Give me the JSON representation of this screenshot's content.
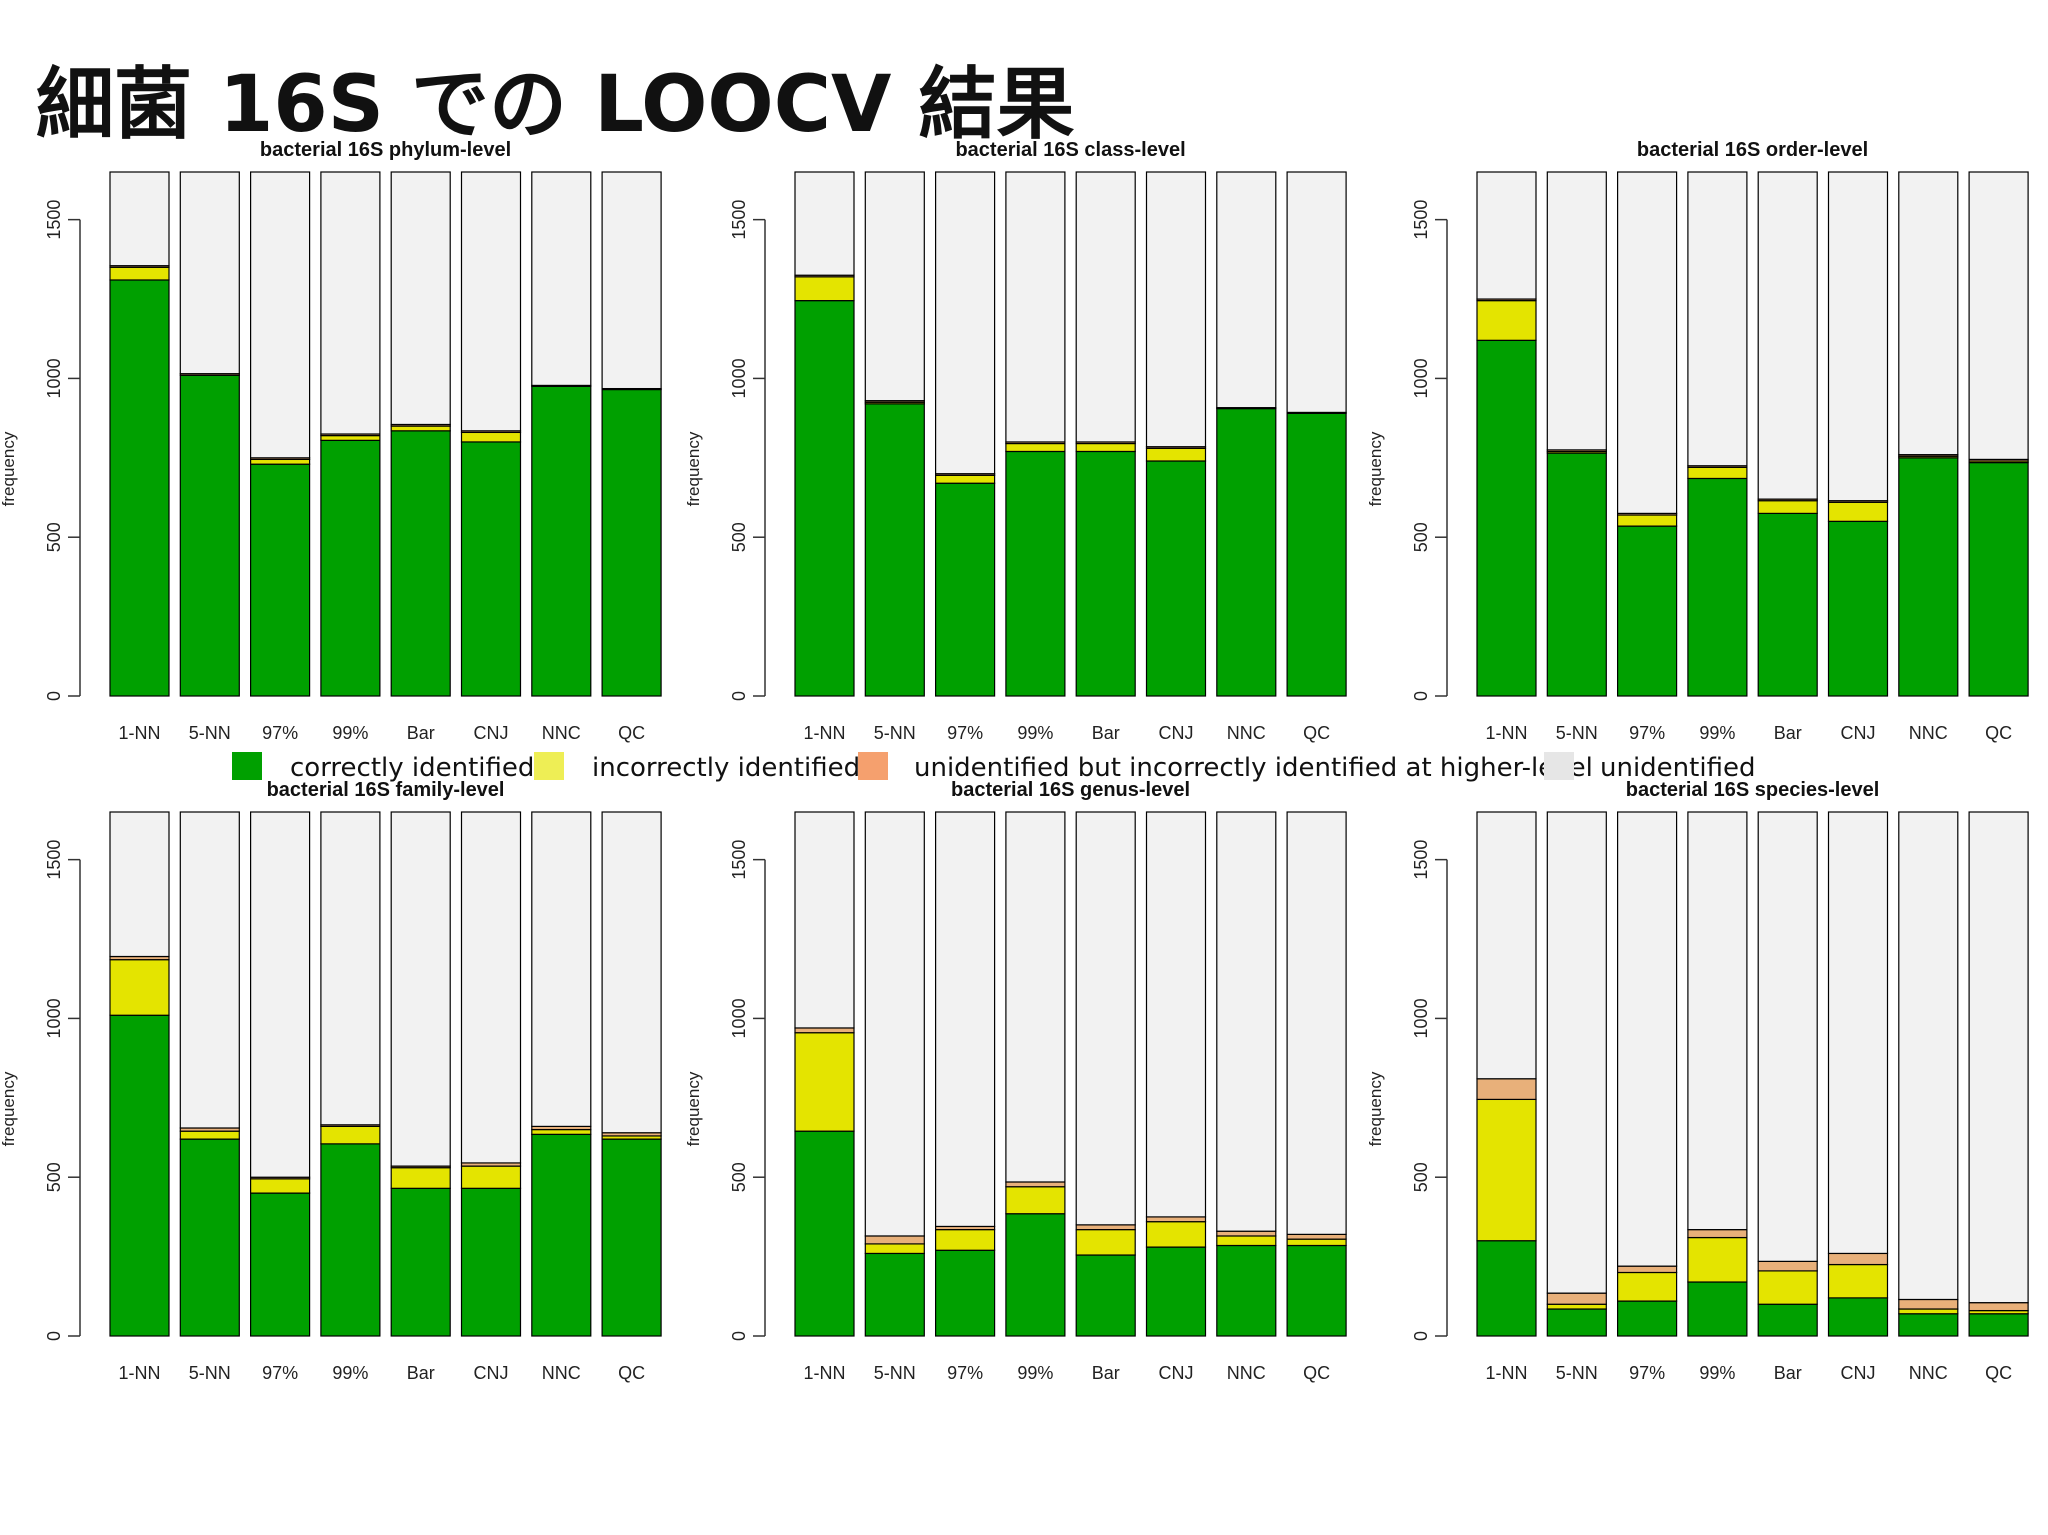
{
  "slide": {
    "title": "細菌 16S での LOOCV 結果"
  },
  "chart_data": {
    "type": "bar",
    "stacked": true,
    "categories": [
      "1-NN",
      "5-NN",
      "97%",
      "99%",
      "Bar",
      "CNJ",
      "NNC",
      "QC"
    ],
    "ylabel": "frequency",
    "ylim": [
      0,
      1650
    ],
    "yticks": [
      0,
      500,
      1000,
      1500
    ],
    "total": 1650,
    "grid": false,
    "legend": {
      "position": "between-rows",
      "entries": [
        {
          "key": "correct",
          "label": "correctly identified",
          "color": "#00a000"
        },
        {
          "key": "incorrect",
          "label": "incorrectly identified",
          "color": "#e4e400"
        },
        {
          "key": "higher",
          "label": "unidentified but incorrectly identified at higher-level",
          "color": "#e8b07a"
        },
        {
          "key": "unid",
          "label": "unidentified",
          "color": "#f2f2f2"
        }
      ]
    },
    "legend_swatch_colors": {
      "correct": "#00a000",
      "incorrect": "#eeee55",
      "higher": "#f5a06e",
      "unid": "#e6e6e6"
    },
    "panels": [
      {
        "title": "bacterial 16S phylum-level",
        "series": [
          {
            "name": "correctly identified",
            "values": [
              1310,
              1010,
              730,
              805,
              835,
              800,
              975,
              965
            ]
          },
          {
            "name": "incorrectly identified",
            "values": [
              40,
              0,
              15,
              15,
              15,
              30,
              0,
              0
            ]
          },
          {
            "name": "unidentified but incorrectly identified at higher-level",
            "values": [
              5,
              5,
              5,
              5,
              5,
              5,
              3,
              3
            ]
          }
        ]
      },
      {
        "title": "bacterial 16S class-level",
        "series": [
          {
            "name": "correctly identified",
            "values": [
              1245,
              920,
              670,
              770,
              770,
              740,
              905,
              890
            ]
          },
          {
            "name": "incorrectly identified",
            "values": [
              75,
              5,
              25,
              25,
              25,
              40,
              0,
              0
            ]
          },
          {
            "name": "unidentified but incorrectly identified at higher-level",
            "values": [
              5,
              5,
              5,
              5,
              5,
              5,
              3,
              3
            ]
          }
        ]
      },
      {
        "title": "bacterial 16S order-level",
        "series": [
          {
            "name": "correctly identified",
            "values": [
              1120,
              765,
              535,
              685,
              575,
              550,
              750,
              735
            ]
          },
          {
            "name": "incorrectly identified",
            "values": [
              125,
              5,
              35,
              35,
              40,
              60,
              5,
              5
            ]
          },
          {
            "name": "unidentified but incorrectly identified at higher-level",
            "values": [
              5,
              5,
              5,
              5,
              5,
              5,
              5,
              5
            ]
          }
        ]
      },
      {
        "title": "bacterial 16S family-level",
        "series": [
          {
            "name": "correctly identified",
            "values": [
              1010,
              620,
              450,
              605,
              465,
              465,
              635,
              620
            ]
          },
          {
            "name": "incorrectly identified",
            "values": [
              175,
              25,
              45,
              55,
              65,
              70,
              15,
              10
            ]
          },
          {
            "name": "unidentified but incorrectly identified at higher-level",
            "values": [
              10,
              10,
              5,
              5,
              5,
              10,
              10,
              10
            ]
          }
        ]
      },
      {
        "title": "bacterial 16S genus-level",
        "series": [
          {
            "name": "correctly identified",
            "values": [
              645,
              260,
              270,
              385,
              255,
              280,
              285,
              285
            ]
          },
          {
            "name": "incorrectly identified",
            "values": [
              310,
              30,
              65,
              85,
              80,
              80,
              30,
              20
            ]
          },
          {
            "name": "unidentified but incorrectly identified at higher-level",
            "values": [
              15,
              25,
              10,
              15,
              15,
              15,
              15,
              15
            ]
          }
        ]
      },
      {
        "title": "bacterial 16S species-level",
        "series": [
          {
            "name": "correctly identified",
            "values": [
              300,
              85,
              110,
              170,
              100,
              120,
              70,
              70
            ]
          },
          {
            "name": "incorrectly identified",
            "values": [
              445,
              15,
              90,
              140,
              105,
              105,
              15,
              10
            ]
          },
          {
            "name": "unidentified but incorrectly identified at higher-level",
            "values": [
              65,
              35,
              20,
              25,
              30,
              35,
              30,
              25
            ]
          }
        ]
      }
    ]
  }
}
